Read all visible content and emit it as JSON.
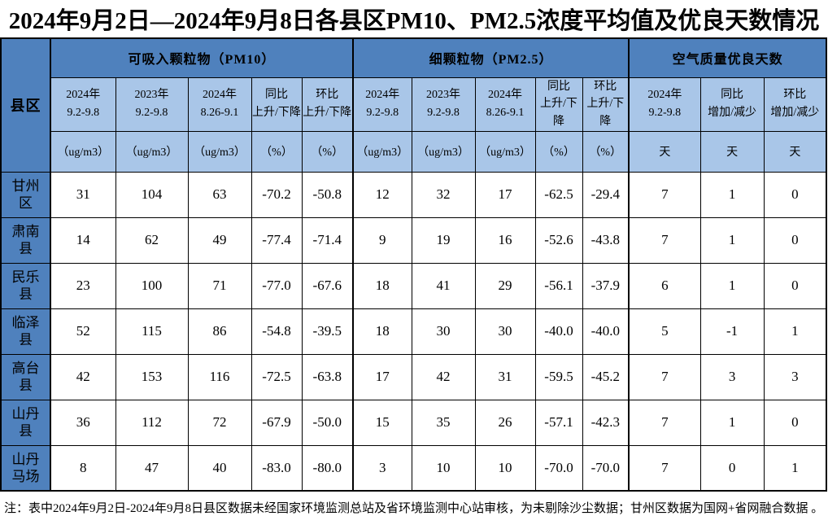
{
  "title": "2024年9月2日—2024年9月8日各县区PM10、PM2.5浓度平均值及优良天数情况",
  "footnote": "注：表中2024年9月2日-2024年9月8日县区数据未经国家环境监测总站及省环境监测中心站审核，为未剔除沙尘数据；甘州区数据为国网+省网融合数据 。",
  "colors": {
    "header_dark_blue": "#4f81bd",
    "header_light_blue": "#a9c6e8",
    "grid_line": "#000000",
    "text": "#000000",
    "data_cell_bg": "#ffffff"
  },
  "table": {
    "corner_label": "县区",
    "groups": [
      {
        "label": "可吸入颗粒物（PM10）",
        "span": 5
      },
      {
        "label": "细颗粒物（PM2.5）",
        "span": 5
      },
      {
        "label": "空气质量优良天数",
        "span": 3
      }
    ],
    "subheaders": [
      {
        "line1": "2024年",
        "line2": "9.2-9.8"
      },
      {
        "line1": "2023年",
        "line2": "9.2-9.8"
      },
      {
        "line1": "2024年",
        "line2": "8.26-9.1"
      },
      {
        "line1": "同比",
        "line2": "上升/下降"
      },
      {
        "line1": "环比",
        "line2": "上升/下降"
      },
      {
        "line1": "2024年",
        "line2": "9.2-9.8"
      },
      {
        "line1": "2023年",
        "line2": "9.2-9.8"
      },
      {
        "line1": "2024年",
        "line2": "8.26-9.1"
      },
      {
        "line1": "同比",
        "line2": "上升/下降"
      },
      {
        "line1": "环比",
        "line2": "上升/下降"
      },
      {
        "line1": "2024年",
        "line2": "9.2-9.8"
      },
      {
        "line1": "同比",
        "line2": "增加/减少"
      },
      {
        "line1": "环比",
        "line2": "增加/减少"
      }
    ],
    "units": [
      "（ug/m3）",
      "（ug/m3）",
      "（ug/m3）",
      "（%）",
      "（%）",
      "（ug/m3）",
      "（ug/m3）",
      "（ug/m3）",
      "（%）",
      "（%）",
      "天",
      "天",
      "天"
    ],
    "rows": [
      {
        "county": "甘州区",
        "values": [
          "31",
          "104",
          "63",
          "-70.2",
          "-50.8",
          "12",
          "32",
          "17",
          "-62.5",
          "-29.4",
          "7",
          "1",
          "0"
        ]
      },
      {
        "county": "肃南县",
        "values": [
          "14",
          "62",
          "49",
          "-77.4",
          "-71.4",
          "9",
          "19",
          "16",
          "-52.6",
          "-43.8",
          "7",
          "1",
          "0"
        ]
      },
      {
        "county": "民乐县",
        "values": [
          "23",
          "100",
          "71",
          "-77.0",
          "-67.6",
          "18",
          "41",
          "29",
          "-56.1",
          "-37.9",
          "6",
          "1",
          "0"
        ]
      },
      {
        "county": "临泽县",
        "values": [
          "52",
          "115",
          "86",
          "-54.8",
          "-39.5",
          "18",
          "30",
          "30",
          "-40.0",
          "-40.0",
          "5",
          "-1",
          "1"
        ]
      },
      {
        "county": "高台县",
        "values": [
          "42",
          "153",
          "116",
          "-72.5",
          "-63.8",
          "17",
          "42",
          "31",
          "-59.5",
          "-45.2",
          "7",
          "3",
          "3"
        ]
      },
      {
        "county": "山丹县",
        "values": [
          "36",
          "112",
          "72",
          "-67.9",
          "-50.0",
          "15",
          "35",
          "26",
          "-57.1",
          "-42.3",
          "7",
          "1",
          "0"
        ]
      },
      {
        "county": "山丹马场",
        "values": [
          "8",
          "47",
          "40",
          "-83.0",
          "-80.0",
          "3",
          "10",
          "10",
          "-70.0",
          "-70.0",
          "7",
          "0",
          "1"
        ]
      }
    ]
  }
}
